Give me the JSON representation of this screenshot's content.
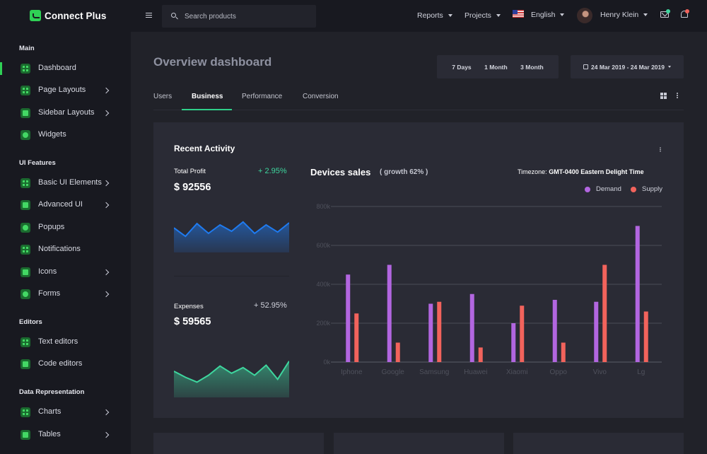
{
  "brand": {
    "name": "Connect Plus"
  },
  "sidebar": {
    "sections": [
      {
        "title": "Main",
        "items": [
          {
            "label": "Dashboard",
            "icon": "cube-icon",
            "active": true,
            "chevron": false
          }
        ]
      },
      {
        "title": "",
        "items": [
          {
            "label": "Page Layouts",
            "icon": "grid-icon",
            "chevron": true
          },
          {
            "label": "Sidebar Layouts",
            "icon": "list-icon",
            "chevron": true
          },
          {
            "label": "Widgets",
            "icon": "widgets-icon",
            "chevron": false
          }
        ]
      },
      {
        "title": "UI Features",
        "items": [
          {
            "label": "Basic UI Elements",
            "icon": "target-icon",
            "chevron": true
          },
          {
            "label": "Advanced UI",
            "icon": "monitor-icon",
            "chevron": true
          },
          {
            "label": "Popups",
            "icon": "chat-icon",
            "chevron": false
          },
          {
            "label": "Notifications",
            "icon": "bell-icon",
            "chevron": false
          },
          {
            "label": "Icons",
            "icon": "emoji-icon",
            "chevron": true
          },
          {
            "label": "Forms",
            "icon": "form-icon",
            "chevron": true
          }
        ]
      },
      {
        "title": "Editors",
        "items": [
          {
            "label": "Text editors",
            "icon": "file-icon",
            "chevron": false
          },
          {
            "label": "Code editors",
            "icon": "code-icon",
            "chevron": false
          }
        ]
      },
      {
        "title": "Data Representation",
        "items": [
          {
            "label": "Charts",
            "icon": "chart-icon",
            "chevron": true
          },
          {
            "label": "Tables",
            "icon": "table-icon",
            "chevron": true
          }
        ]
      }
    ]
  },
  "topbar": {
    "search_placeholder": "Search products",
    "reports": "Reports",
    "projects": "Projects",
    "language": "English",
    "user_name": "Henry Klein"
  },
  "page": {
    "title": "Overview dashboard",
    "ranges": [
      "7 Days",
      "1 Month",
      "3 Month"
    ],
    "date_range": "24 Mar 2019 - 24 Mar 2019",
    "tabs": [
      "Users",
      "Business",
      "Performance",
      "Conversion"
    ],
    "active_tab": "Business"
  },
  "card": {
    "title": "Recent Activity",
    "profit": {
      "label": "Total Profit",
      "change": "+ 2.95%",
      "value": "$ 92556"
    },
    "expenses": {
      "label": "Expenses",
      "change": "+ 52.95%",
      "value": "$ 59565"
    }
  },
  "chart_header": {
    "title": "Devices sales",
    "subtitle": "( growth 62% )",
    "timezone_label": "Timezone:",
    "timezone_value": "GMT-0400 Eastern Delight Time"
  },
  "colors": {
    "accent": "#2fd055",
    "demand": "#b266e0",
    "supply": "#f2635c",
    "profit_line": "#1f7bf0",
    "expenses_line": "#3ed69e",
    "change_green": "#3ed69e"
  },
  "sparklines": {
    "profit": [
      0.42,
      0.62,
      0.32,
      0.55,
      0.35,
      0.5,
      0.28,
      0.55,
      0.35,
      0.52,
      0.3
    ],
    "expenses": [
      0.35,
      0.5,
      0.62,
      0.45,
      0.22,
      0.4,
      0.26,
      0.45,
      0.2,
      0.55,
      0.1
    ]
  },
  "chart_data": {
    "type": "bar",
    "categories": [
      "Iphone",
      "Google",
      "Samsung",
      "Huawei",
      "Xiaomi",
      "Oppo",
      "Vivo",
      "Lg"
    ],
    "series": [
      {
        "name": "Demand",
        "values": [
          450000,
          500000,
          300000,
          350000,
          200000,
          320000,
          310000,
          700000
        ]
      },
      {
        "name": "Supply",
        "values": [
          250000,
          100000,
          310000,
          75000,
          290000,
          100000,
          500000,
          260000
        ]
      }
    ],
    "yticks": [
      "0k",
      "200k",
      "400k",
      "600k",
      "800k"
    ],
    "ylim": [
      0,
      800000
    ],
    "legend": "top-right",
    "grid": true
  }
}
